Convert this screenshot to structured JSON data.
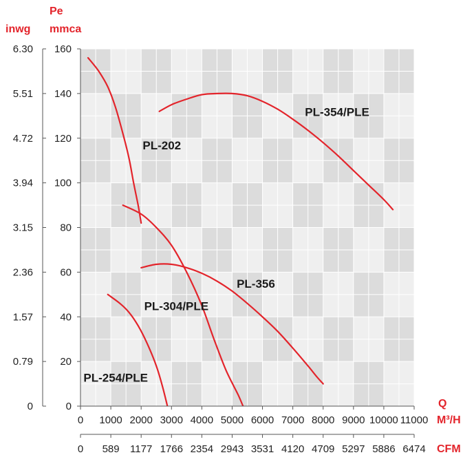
{
  "chart_data": {
    "type": "line",
    "colors": {
      "curve": "#e3242b",
      "unit_label": "#e3242b",
      "grid_dark": "#dcdcdc",
      "grid_light": "#efefef"
    },
    "units": {
      "pe": "Pe",
      "mmca": "mmca",
      "inwg": "inwg",
      "q": "Q",
      "m3h": "M³/H",
      "cfm": "CFM"
    },
    "xlim": [
      0,
      11000
    ],
    "ylim": [
      0,
      160
    ],
    "grid": true,
    "x_ticks_m3h": [
      "0",
      "1000",
      "2000",
      "3000",
      "4000",
      "5000",
      "6000",
      "7000",
      "8000",
      "9000",
      "10000",
      "11000"
    ],
    "x_ticks_cfm": [
      "0",
      "589",
      "1177",
      "1766",
      "2354",
      "2943",
      "3531",
      "4120",
      "4709",
      "5297",
      "5886",
      "6474"
    ],
    "y_ticks_mmca": [
      "0",
      "20",
      "40",
      "60",
      "80",
      "100",
      "120",
      "140",
      "160"
    ],
    "y_ticks_inwg": [
      "0",
      "0.79",
      "1.57",
      "2.36",
      "3.15",
      "3.94",
      "4.72",
      "5.51",
      "6.30"
    ],
    "series": [
      {
        "name": "PL-202",
        "label_at": [
          2050,
          115
        ],
        "x": [
          250,
          600,
          900,
          1150,
          1400,
          1600,
          1750,
          1900,
          2000
        ],
        "y": [
          156,
          150,
          143,
          134,
          122,
          111,
          100,
          90,
          82
        ]
      },
      {
        "name": "PL-354/PLE",
        "label_at": [
          7400,
          130
        ],
        "x": [
          2600,
          3000,
          3500,
          4000,
          4500,
          5000,
          5500,
          6000,
          6500,
          7000,
          7500,
          8000,
          8500,
          9000,
          9500,
          10000,
          10300
        ],
        "y": [
          132,
          135,
          137.5,
          139.5,
          140,
          140,
          139,
          136.5,
          133,
          128.5,
          123.5,
          118,
          112,
          105.5,
          99,
          92.5,
          88
        ]
      },
      {
        "name": "PL-356",
        "label_at": [
          5150,
          53
        ],
        "x": [
          1400,
          2000,
          2500,
          3000,
          3500,
          4000,
          4400,
          4800,
          5200,
          5500,
          5800
        ],
        "y": [
          90,
          86,
          80,
          72,
          60,
          45,
          30,
          16,
          5,
          -4,
          -8
        ]
      },
      {
        "name": "PL-304/PLE",
        "label_at": [
          2100,
          43
        ],
        "x": [
          2000,
          2500,
          3000,
          3500,
          4000,
          4500,
          5000,
          5500,
          6000,
          6500,
          7000,
          7500,
          7800,
          8000
        ],
        "y": [
          62,
          63.5,
          63.5,
          62,
          59.5,
          56,
          51.5,
          46,
          40,
          33.5,
          26,
          18,
          13,
          10
        ]
      },
      {
        "name": "PL-254/PLE",
        "label_at": [
          100,
          11
        ],
        "x": [
          900,
          1300,
          1600,
          1900,
          2200,
          2500,
          2700,
          2900,
          3000
        ],
        "y": [
          50,
          46,
          42,
          36,
          28,
          18,
          9,
          -2,
          -8
        ]
      }
    ]
  }
}
